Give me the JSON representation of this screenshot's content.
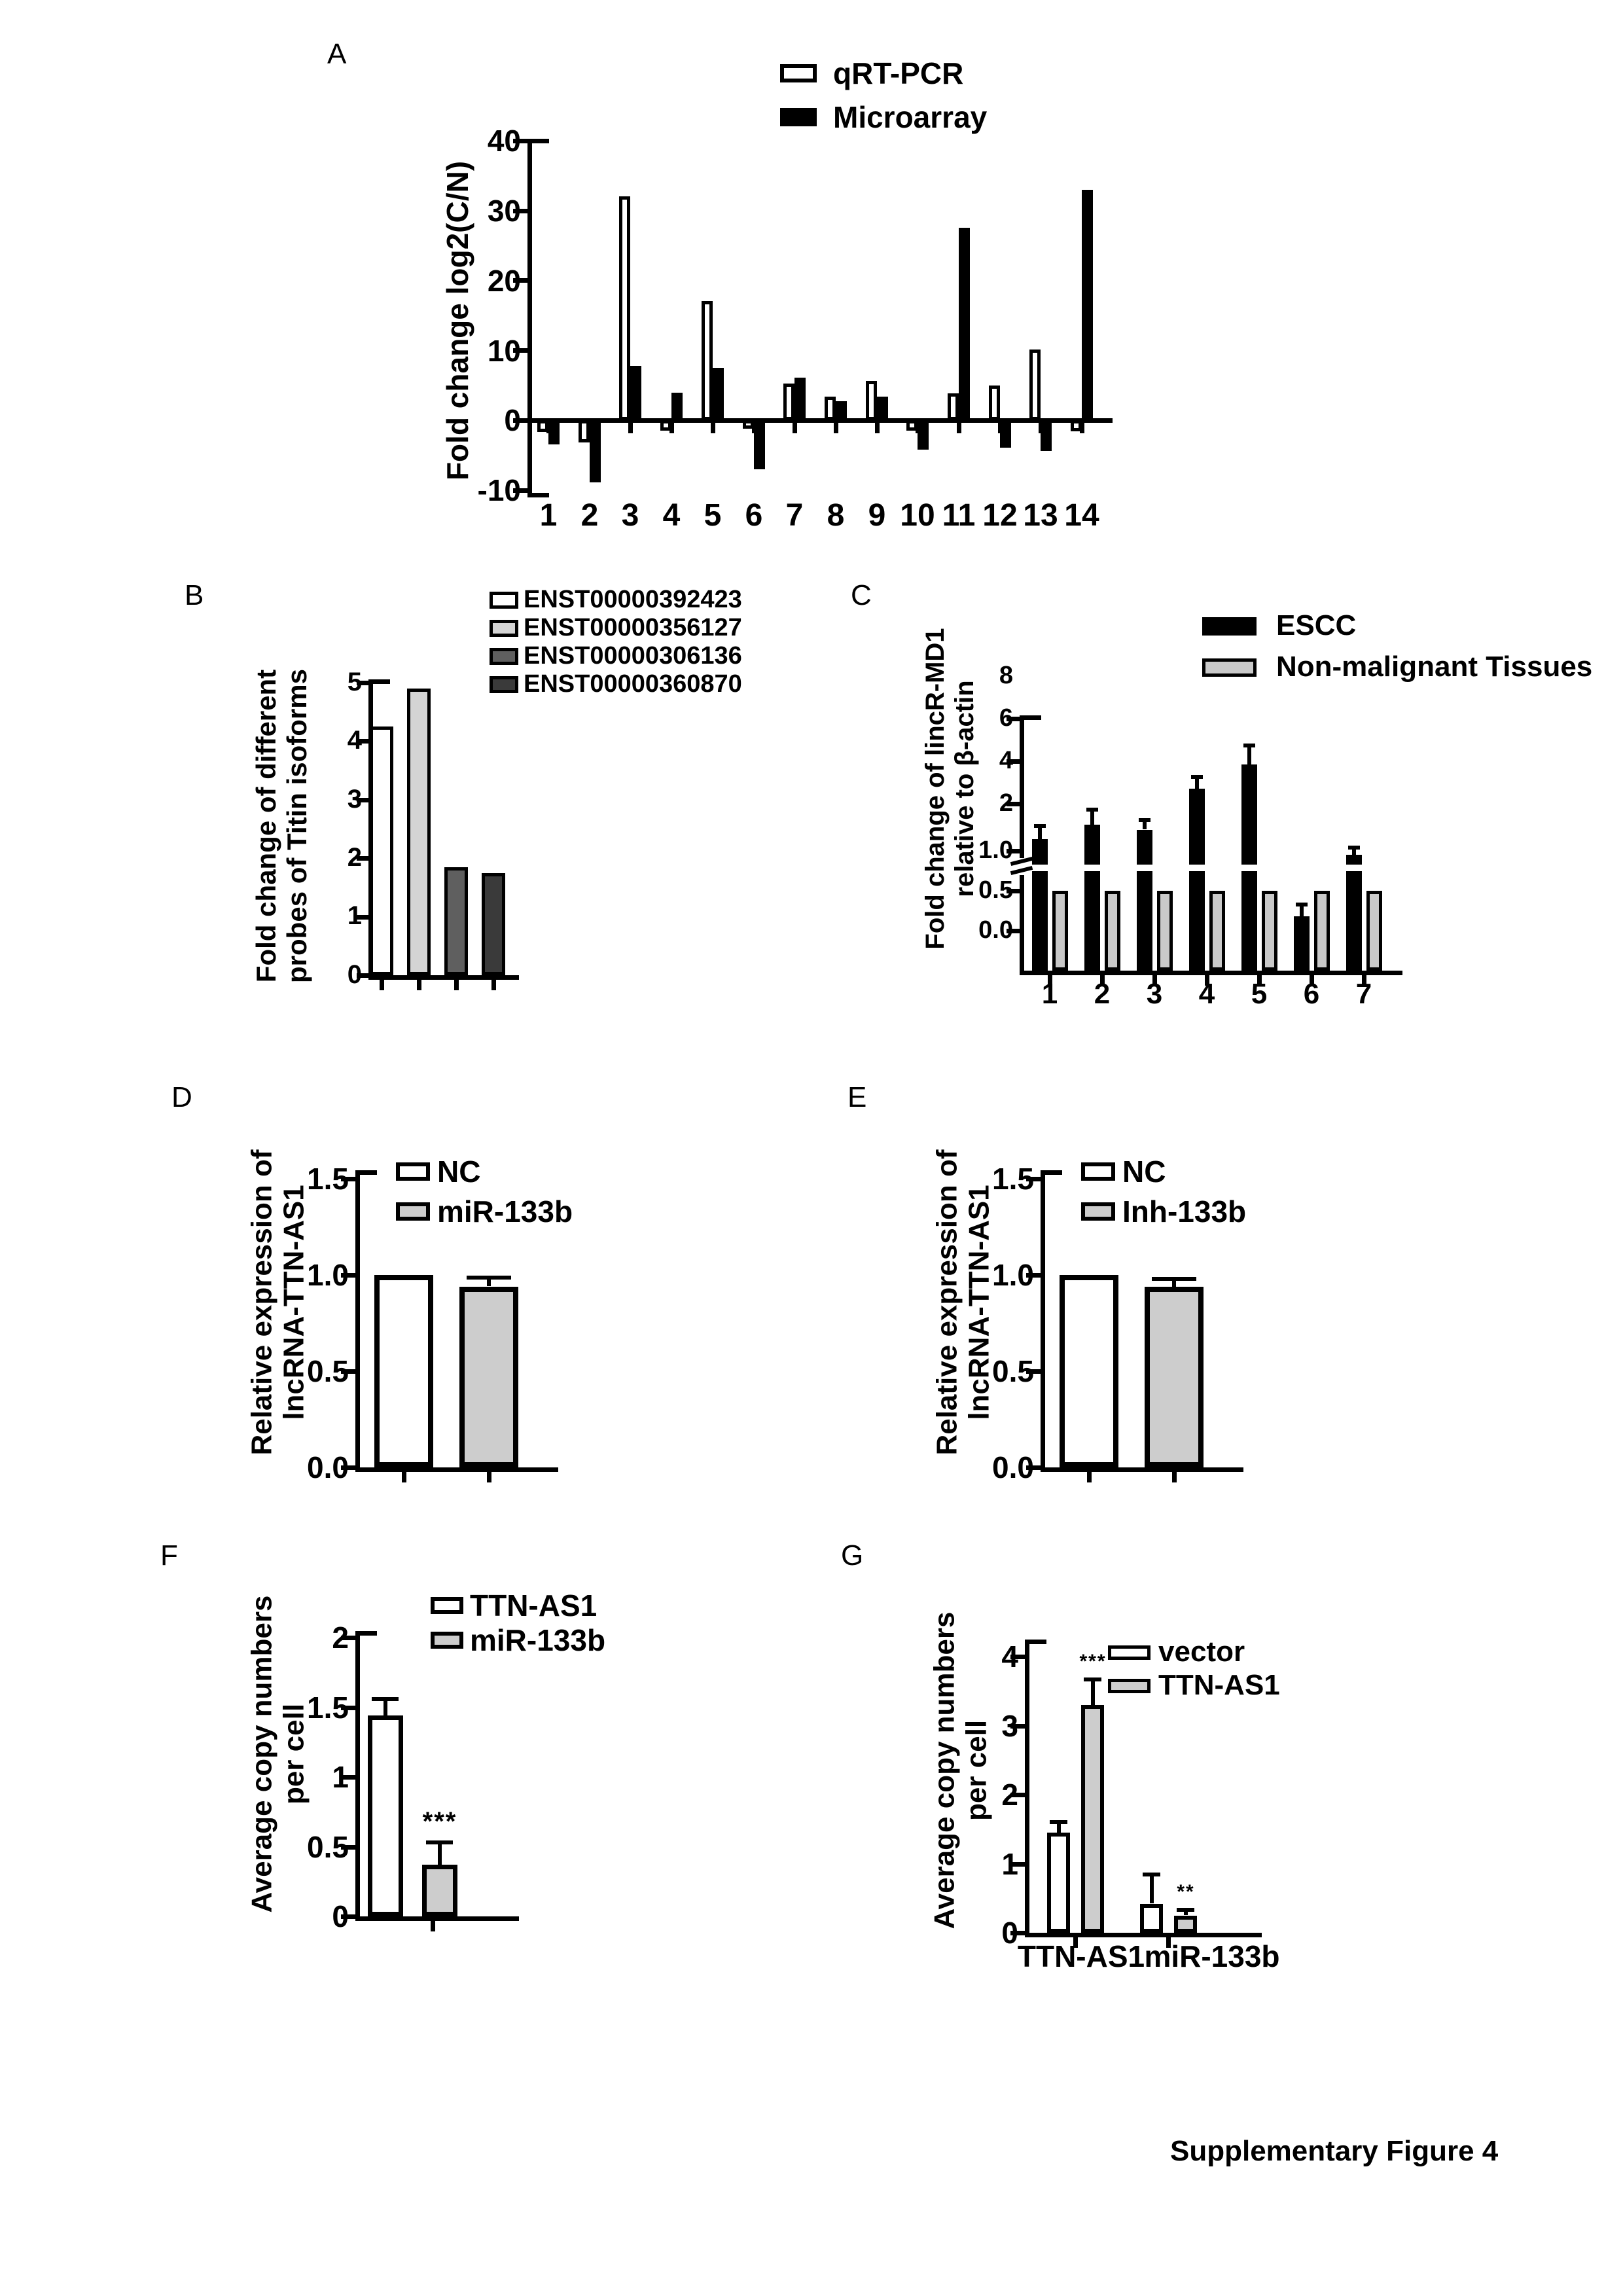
{
  "caption": {
    "text": "Supplementary Figure 4"
  },
  "chart_data": [
    {
      "id": "A",
      "panel_label": "A",
      "type": "bar",
      "ylabel_lines": [
        "Fold change log2(C/N)"
      ],
      "y_ticks": [
        "40",
        "30",
        "20",
        "10",
        "0",
        "-10"
      ],
      "ylim": [
        -10,
        40
      ],
      "categories": [
        "1",
        "2",
        "3",
        "4",
        "5",
        "6",
        "7",
        "8",
        "9",
        "10",
        "11",
        "12",
        "13",
        "14"
      ],
      "x_tick_labels": [
        "1",
        "2",
        "3",
        "4",
        "5",
        "6",
        "7",
        "8",
        "9",
        "10",
        "11",
        "12",
        "13",
        "14"
      ],
      "legend": [
        {
          "name": "qRT-PCR",
          "fill": "#ffffff"
        },
        {
          "name": "Microarray",
          "fill": "#000000"
        }
      ],
      "legend_position": "top",
      "series": [
        {
          "name": "qRT-PCR",
          "fill": "#ffffff",
          "values": [
            -1.7,
            -3.2,
            32,
            -1.5,
            17,
            -1.2,
            5.2,
            3.4,
            5.6,
            -1.5,
            3.8,
            5,
            10.1,
            -1.6
          ]
        },
        {
          "name": "Microarray",
          "fill": "#000000",
          "values": [
            -3.5,
            -8.9,
            7.8,
            3.9,
            7.5,
            -7,
            6.1,
            2.7,
            3.4,
            -4.2,
            27.5,
            -3.9,
            -4.4,
            33
          ]
        }
      ]
    },
    {
      "id": "B",
      "panel_label": "B",
      "type": "bar",
      "ylabel_lines": [
        "Fold change of different",
        "probes of Titin isoforms"
      ],
      "y_ticks": [
        "5",
        "4",
        "3",
        "2",
        "1",
        "0"
      ],
      "ylim": [
        0,
        5
      ],
      "categories": [
        "ENST00000392423",
        "ENST00000356127",
        "ENST00000306136",
        "ENST00000360870"
      ],
      "legend": [
        {
          "name": "ENST00000392423",
          "fill": "#ffffff"
        },
        {
          "name": "ENST00000356127",
          "fill": "#d4d4d4"
        },
        {
          "name": "ENST00000306136",
          "fill": "#5f5f5f"
        },
        {
          "name": "ENST00000360870",
          "fill": "#3a3a3a"
        }
      ],
      "legend_position": "top-right",
      "series": [
        {
          "name": "Titin isoform probes",
          "colors": [
            "#ffffff",
            "#d4d4d4",
            "#5f5f5f",
            "#3a3a3a"
          ],
          "values": [
            4.25,
            4.9,
            1.85,
            1.75
          ]
        }
      ]
    },
    {
      "id": "C",
      "panel_label": "C",
      "type": "bar",
      "axis_break": true,
      "ylabel_lines": [
        "Fold change of lincR-MD1",
        "relative to β-actin"
      ],
      "y_ticks": [
        "8",
        "6",
        "4",
        "2",
        "1.0",
        "0.5",
        "0.0"
      ],
      "ylim": [
        0,
        8
      ],
      "categories": [
        "1",
        "2",
        "3",
        "4",
        "5",
        "6",
        "7"
      ],
      "x_tick_labels": [
        "1",
        "2",
        "3",
        "4",
        "5",
        "6",
        "7"
      ],
      "legend": [
        {
          "name": "ESCC",
          "fill": "#000000"
        },
        {
          "name": "Non-malignant Tissues",
          "fill": "#c9c9c9"
        }
      ],
      "legend_position": "top-right",
      "series": [
        {
          "name": "ESCC",
          "fill": "#000000",
          "values": [
            1.25,
            1.55,
            1.45,
            2.7,
            3.85,
            0.18,
            0.95
          ],
          "errors": [
            0.28,
            0.33,
            0.2,
            0.55,
            0.9,
            0.15,
            0.12
          ]
        },
        {
          "name": "Non-malignant Tissues",
          "fill": "#c9c9c9",
          "values": [
            0.5,
            0.5,
            0.5,
            0.5,
            0.5,
            0.5,
            0.5
          ]
        }
      ]
    },
    {
      "id": "D",
      "panel_label": "D",
      "type": "bar",
      "ylabel_lines": [
        "Relative expression of",
        "lncRNA-TTN-AS1"
      ],
      "y_ticks": [
        "1.5",
        "1.0",
        "0.5",
        "0.0"
      ],
      "ylim": [
        0,
        1.5
      ],
      "categories": [
        "NC",
        "miR-133b"
      ],
      "legend": [
        {
          "name": "NC",
          "fill": "#ffffff"
        },
        {
          "name": "miR-133b",
          "fill": "#cdcdcd"
        }
      ],
      "legend_position": "top",
      "series": [
        {
          "name": "expression",
          "colors": [
            "#ffffff",
            "#cdcdcd"
          ],
          "values": [
            1.0,
            0.94
          ],
          "errors": [
            null,
            0.045
          ]
        }
      ]
    },
    {
      "id": "E",
      "panel_label": "E",
      "type": "bar",
      "ylabel_lines": [
        "Relative expression of",
        "lncRNA-TTN-AS1"
      ],
      "y_ticks": [
        "1.5",
        "1.0",
        "0.5",
        "0.0"
      ],
      "ylim": [
        0,
        1.5
      ],
      "categories": [
        "NC",
        "Inh-133b"
      ],
      "legend": [
        {
          "name": "NC",
          "fill": "#ffffff"
        },
        {
          "name": "Inh-133b",
          "fill": "#cdcdcd"
        }
      ],
      "legend_position": "top",
      "series": [
        {
          "name": "expression",
          "colors": [
            "#ffffff",
            "#cdcdcd"
          ],
          "values": [
            1.0,
            0.94
          ],
          "errors": [
            null,
            0.04
          ]
        }
      ]
    },
    {
      "id": "F",
      "panel_label": "F",
      "type": "bar",
      "ylabel_lines": [
        "Average copy numbers",
        "per cell"
      ],
      "y_ticks": [
        "2",
        "1.5",
        "1",
        "0.5",
        "0"
      ],
      "ylim": [
        0,
        2
      ],
      "categories": [
        "TTN-AS1",
        "miR-133b"
      ],
      "legend": [
        {
          "name": "TTN-AS1",
          "fill": "#ffffff"
        },
        {
          "name": "miR-133b",
          "fill": "#cdcdcd"
        }
      ],
      "legend_position": "top",
      "series": [
        {
          "name": "copy numbers",
          "colors": [
            "#ffffff",
            "#cdcdcd"
          ],
          "values": [
            1.44,
            0.37
          ],
          "errors": [
            0.12,
            0.16
          ],
          "annotations": [
            null,
            "***"
          ]
        }
      ]
    },
    {
      "id": "G",
      "panel_label": "G",
      "type": "bar",
      "ylabel_lines": [
        "Average copy numbers",
        "per cell"
      ],
      "y_ticks": [
        "4",
        "3",
        "2",
        "1",
        "0"
      ],
      "ylim": [
        0,
        4
      ],
      "categories": [
        "TTN-AS1",
        "miR-133b"
      ],
      "x_tick_labels": [
        "TTN-AS1",
        "miR-133b"
      ],
      "legend": [
        {
          "name": "vector",
          "fill": "#ffffff"
        },
        {
          "name": "TTN-AS1",
          "fill": "#cdcdcd"
        }
      ],
      "legend_position": "top-right",
      "series": [
        {
          "name": "vector",
          "fill": "#ffffff",
          "values": [
            1.45,
            0.42
          ],
          "errors": [
            0.15,
            0.42
          ]
        },
        {
          "name": "TTN-AS1",
          "fill": "#cdcdcd",
          "values": [
            3.3,
            0.25
          ],
          "errors": [
            0.37,
            0.08
          ],
          "annotations": [
            "***",
            "**"
          ]
        }
      ]
    }
  ]
}
